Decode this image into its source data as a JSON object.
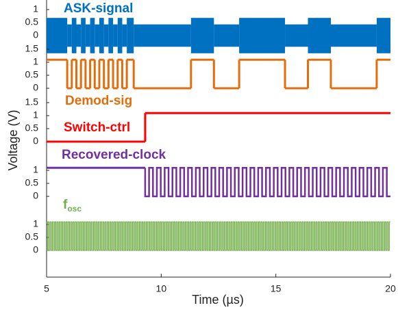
{
  "chart_data": [
    {
      "type": "band",
      "title": "ASK-signal",
      "color": "#0070c0",
      "ylabel": "Voltage (V)",
      "ylim": [
        -0.7,
        1.2
      ],
      "yticks": [
        0,
        0.5,
        1
      ],
      "x": [
        5,
        5.9,
        6.1,
        6.3,
        6.5,
        6.7,
        6.9,
        7.1,
        7.3,
        7.5,
        7.7,
        7.9,
        8.1,
        8.3,
        8.5,
        8.8,
        11.3,
        12.3,
        13.4,
        15.4,
        16.4,
        17.4,
        19.4,
        20
      ],
      "values": [
        0.68,
        0.43,
        0.68,
        0.43,
        0.68,
        0.43,
        0.68,
        0.43,
        0.68,
        0.43,
        0.68,
        0.43,
        0.68,
        0.43,
        0.68,
        0.43,
        0.68,
        0.43,
        0.68,
        0.43,
        0.68,
        0.43,
        0.68,
        0.68
      ]
    },
    {
      "type": "step",
      "title": "Demod-sig",
      "color": "#e46c0a",
      "ylim": [
        -0.2,
        1.6
      ],
      "yticks": [
        0,
        0.5,
        1,
        1.5
      ],
      "x": [
        5,
        5.9,
        6.1,
        6.3,
        6.5,
        6.7,
        6.9,
        7.1,
        7.3,
        7.5,
        7.7,
        7.9,
        8.1,
        8.3,
        8.5,
        8.8,
        11.3,
        12.3,
        13.4,
        15.4,
        16.4,
        17.4,
        19.4,
        20
      ],
      "values": [
        1.1,
        0,
        1.1,
        0,
        1.1,
        0,
        1.1,
        0,
        1.1,
        0,
        1.1,
        0,
        1.1,
        0,
        1.1,
        0,
        1.1,
        0,
        1.1,
        0,
        1.1,
        0,
        1.1,
        1.1
      ]
    },
    {
      "type": "step",
      "title": "Switch-ctrl",
      "color": "#ff0000",
      "ylim": [
        -0.2,
        1.6
      ],
      "yticks": [
        0,
        0.5,
        1,
        1.5
      ],
      "x": [
        5,
        9.3,
        20
      ],
      "values": [
        0,
        1.1,
        1.1
      ]
    },
    {
      "type": "step",
      "title": "Recovered-clock",
      "color": "#7030a0",
      "ylim": [
        -0.2,
        1.6
      ],
      "yticks": [
        0,
        0.5,
        1
      ],
      "x": [
        5,
        9.3
      ],
      "values": [
        1.1,
        1.1
      ],
      "oscillation": {
        "from": 9.3,
        "to": 20,
        "period": 0.34,
        "low": 0,
        "high": 1.1
      }
    },
    {
      "type": "step",
      "title": {
        "text": "f",
        "sub": "osc"
      },
      "color": "#70ad47",
      "ylim": [
        -0.2,
        1.6
      ],
      "yticks": [
        0,
        0.5,
        1
      ],
      "x": [],
      "values": [],
      "oscillation": {
        "from": 5,
        "to": 20,
        "period": 0.1,
        "low": 0,
        "high": 1.1
      },
      "xlim": [
        5,
        20
      ],
      "xticks": [
        5,
        10,
        15,
        20
      ],
      "xlabel": "Time (µs)"
    }
  ]
}
